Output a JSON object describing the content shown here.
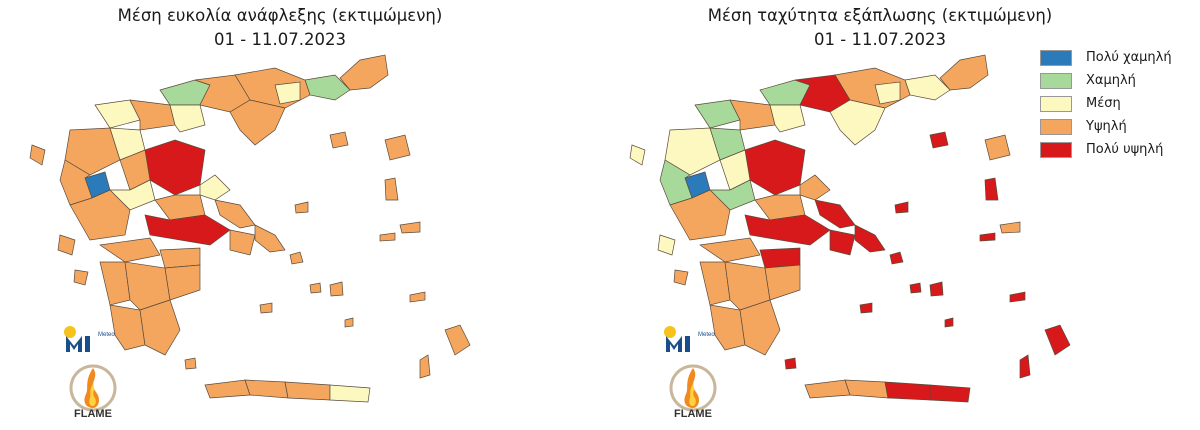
{
  "colors": {
    "very_low": "#2b7bba",
    "low": "#a6d99a",
    "medium": "#fdf8c0",
    "high": "#f4a65f",
    "very_high": "#d7191c"
  },
  "panels": [
    {
      "title": "Μέση ευκολία ανάφλεξης (εκτιμώμενη)",
      "date": "01 - 11.07.2023"
    },
    {
      "title": "Μέση ταχύτητα εξάπλωσης (εκτιμώμενη)",
      "date": "01 - 11.07.2023"
    }
  ],
  "legend": [
    {
      "label": "Πολύ χαμηλή",
      "color": "#2b7bba"
    },
    {
      "label": "Χαμηλή",
      "color": "#a6d99a"
    },
    {
      "label": "Μέση",
      "color": "#fdf8c0"
    },
    {
      "label": "Υψηλή",
      "color": "#f4a65f"
    },
    {
      "label": "Πολύ υψηλή",
      "color": "#d7191c"
    }
  ],
  "logos": {
    "meteo": "Meteo",
    "flame": "FLAME"
  }
}
